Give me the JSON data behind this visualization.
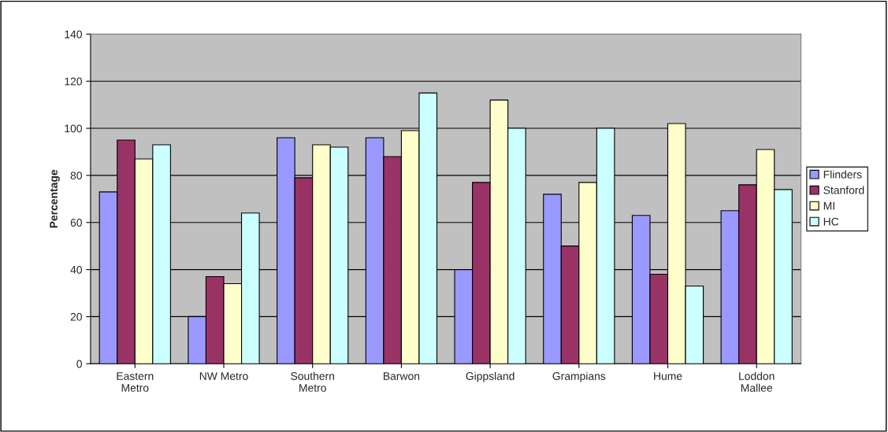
{
  "chart_data": {
    "type": "bar",
    "ylabel": "Percentage",
    "categories": [
      "Eastern\nMetro",
      "NW Metro",
      "Southern\nMetro",
      "Barwon",
      "Gippsland",
      "Grampians",
      "Hume",
      "Loddon\nMallee"
    ],
    "series": [
      {
        "name": "Flinders",
        "color": "#9999ff",
        "values": [
          73,
          20,
          96,
          96,
          40,
          72,
          63,
          65
        ]
      },
      {
        "name": "Stanford",
        "color": "#993366",
        "values": [
          95,
          37,
          79,
          88,
          77,
          50,
          38,
          76
        ]
      },
      {
        "name": "MI",
        "color": "#ffffcc",
        "values": [
          87,
          34,
          93,
          99,
          112,
          77,
          102,
          91
        ]
      },
      {
        "name": "HC",
        "color": "#ccffff",
        "values": [
          93,
          64,
          92,
          115,
          100,
          100,
          33,
          74
        ]
      }
    ],
    "ylim": [
      0,
      140
    ],
    "yticks": [
      0,
      20,
      40,
      60,
      80,
      100,
      120,
      140
    ],
    "grid": "y",
    "legend": "right"
  }
}
